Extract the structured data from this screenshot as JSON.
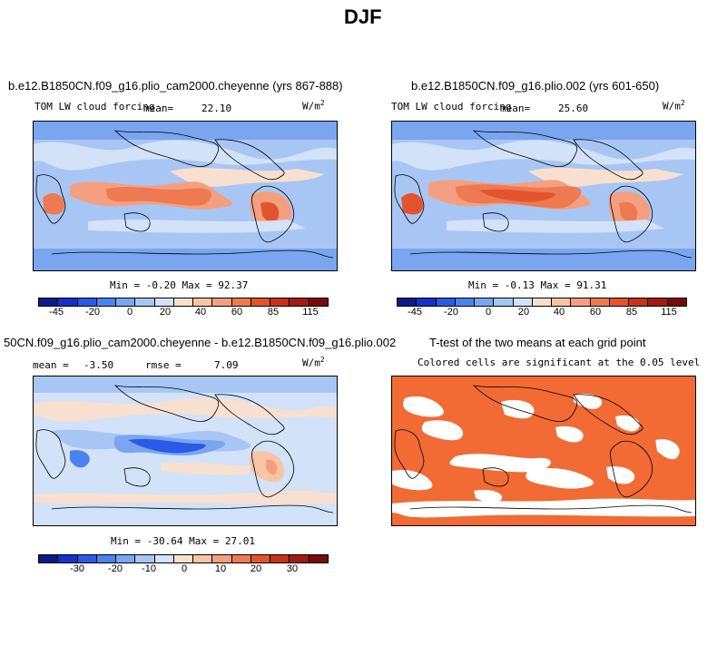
{
  "figure_title": "DJF",
  "panels": {
    "top_left": {
      "title": "b.e12.B1850CN.f09_g16.plio_cam2000.cheyenne (yrs 867-888)",
      "variable": "TOM LW cloud forcing",
      "mean_label": "mean=",
      "mean_value": "22.10",
      "units": "W/m",
      "units_exp": "2",
      "stats": "Min =  -0.20  Max =  92.37"
    },
    "top_right": {
      "title": "b.e12.B1850CN.f09_g16.plio.002 (yrs 601-650)",
      "variable": "TOM LW cloud forcing",
      "mean_label": "mean=",
      "mean_value": "25.60",
      "units": "W/m",
      "units_exp": "2",
      "stats": "Min =  -0.13  Max =  91.31"
    },
    "bottom_left": {
      "title": "50CN.f09_g16.plio_cam2000.cheyenne - b.e12.B1850CN.f09_g16.plio.002",
      "mean_label": "mean =",
      "mean_value": "-3.50",
      "rmse_label": "rmse =",
      "rmse_value": "7.09",
      "units": "W/m",
      "units_exp": "2",
      "stats": "Min = -30.64  Max =  27.01"
    },
    "bottom_right": {
      "title": "T-test of the two means at each grid point",
      "subtitle": "Colored cells are significant at the 0.05 level"
    }
  },
  "colorbars": {
    "abs": {
      "colors": [
        "#0a1a8a",
        "#1432c8",
        "#2a5ae6",
        "#4a82f0",
        "#7aa6f0",
        "#a8c6f4",
        "#d2e2f8",
        "#f8e0d0",
        "#f8c4a6",
        "#f4a080",
        "#ee7a52",
        "#e4542c",
        "#c83218",
        "#a01c10",
        "#780c08"
      ],
      "ticks": [
        "-45",
        "-20",
        "0",
        "20",
        "40",
        "60",
        "85",
        "115"
      ]
    },
    "diff": {
      "colors": [
        "#0a1a8a",
        "#1432c8",
        "#2a5ae6",
        "#4a82f0",
        "#7aa6f0",
        "#a8c6f4",
        "#d2e2f8",
        "#f8e0d0",
        "#f8c4a6",
        "#f4a080",
        "#ee7a52",
        "#e4542c",
        "#c83218",
        "#a01c10",
        "#780c08"
      ],
      "ticks": [
        "-30",
        "-20",
        "-10",
        "0",
        "10",
        "20",
        "30"
      ]
    }
  },
  "colors": {
    "ttest_fill": "#f26a34",
    "ocean_base": "#a8c6f4",
    "diff_base": "#d2e2f8"
  }
}
